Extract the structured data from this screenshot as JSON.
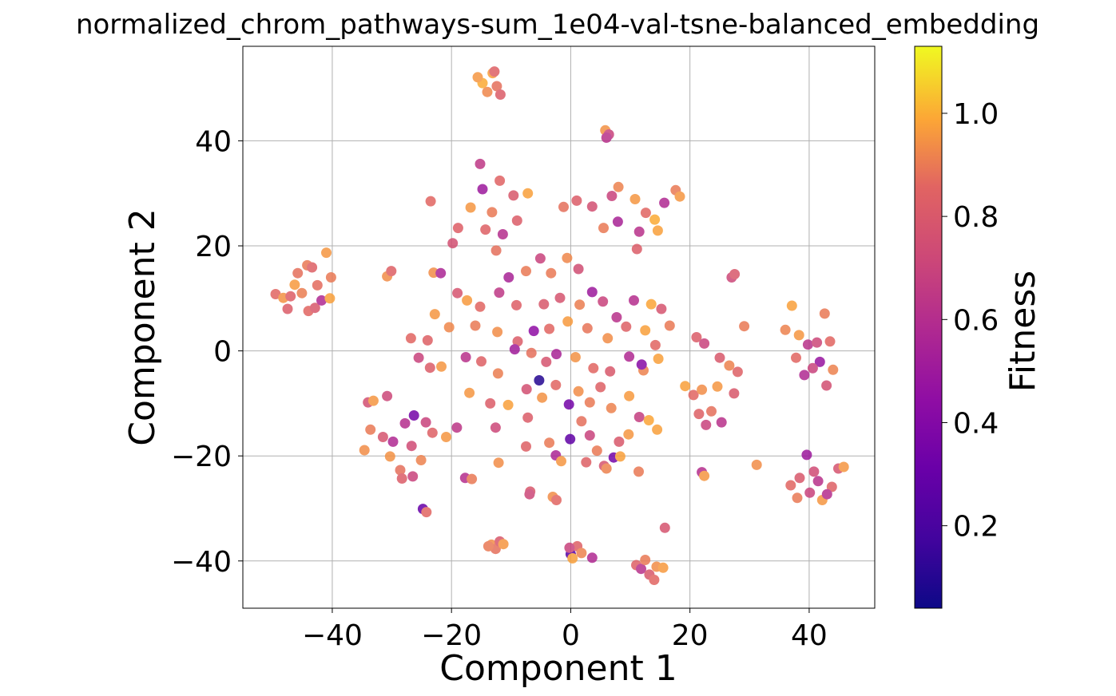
{
  "chart_data": {
    "type": "scatter",
    "title": "normalized_chrom_pathways-sum_1e04-val-tsne-balanced_embedding",
    "xlabel": "Component 1",
    "ylabel": "Component 2",
    "xlim": [
      -55,
      51
    ],
    "ylim": [
      -49,
      58
    ],
    "xticks": [
      -40,
      -20,
      0,
      20,
      40
    ],
    "yticks": [
      -40,
      -20,
      0,
      20,
      40
    ],
    "xtick_labels": [
      "−40",
      "−20",
      "0",
      "20",
      "40"
    ],
    "ytick_labels": [
      "−40",
      "−20",
      "0",
      "20",
      "40"
    ],
    "grid": true,
    "colormap": "plasma",
    "colorbar": {
      "label": "Fitness",
      "range": [
        0.04,
        1.13
      ],
      "ticks": [
        0.2,
        0.4,
        0.6,
        0.8,
        1.0
      ],
      "tick_labels": [
        "0.2",
        "0.4",
        "0.6",
        "0.8",
        "1.0"
      ]
    },
    "points": [
      {
        "x": -49.5,
        "y": 10.8,
        "c": 0.86
      },
      {
        "x": -48.2,
        "y": 10.1,
        "c": 0.95
      },
      {
        "x": -47.5,
        "y": 8.0,
        "c": 0.82
      },
      {
        "x": -46.3,
        "y": 12.6,
        "c": 0.97
      },
      {
        "x": -45.8,
        "y": 14.8,
        "c": 0.88
      },
      {
        "x": -44.2,
        "y": 16.3,
        "c": 0.9
      },
      {
        "x": -43.4,
        "y": 15.9,
        "c": 0.84
      },
      {
        "x": -44.0,
        "y": 7.6,
        "c": 0.86
      },
      {
        "x": -42.9,
        "y": 8.2,
        "c": 0.8
      },
      {
        "x": -41.8,
        "y": 9.6,
        "c": 0.58
      },
      {
        "x": -41.0,
        "y": 18.7,
        "c": 0.96
      },
      {
        "x": -40.2,
        "y": 14.0,
        "c": 0.9
      },
      {
        "x": -40.4,
        "y": 10.0,
        "c": 0.98
      },
      {
        "x": -42.5,
        "y": 12.5,
        "c": 0.87
      },
      {
        "x": -45.1,
        "y": 11.0,
        "c": 0.91
      },
      {
        "x": -47.0,
        "y": 10.4,
        "c": 0.83
      },
      {
        "x": -14.8,
        "y": 51.0,
        "c": 1.0
      },
      {
        "x": -14.0,
        "y": 49.3,
        "c": 0.93
      },
      {
        "x": -13.1,
        "y": 52.9,
        "c": 0.98
      },
      {
        "x": -12.4,
        "y": 50.4,
        "c": 0.88
      },
      {
        "x": -11.8,
        "y": 48.8,
        "c": 0.82
      },
      {
        "x": -15.6,
        "y": 52.1,
        "c": 0.96
      },
      {
        "x": -12.8,
        "y": 53.2,
        "c": 0.84
      },
      {
        "x": 5.8,
        "y": 42.0,
        "c": 0.95
      },
      {
        "x": 6.4,
        "y": 41.2,
        "c": 0.7
      },
      {
        "x": 6.0,
        "y": 40.6,
        "c": 0.62
      },
      {
        "x": -15.2,
        "y": 35.6,
        "c": 0.65
      },
      {
        "x": -14.8,
        "y": 30.8,
        "c": 0.5
      },
      {
        "x": -11.9,
        "y": 32.4,
        "c": 0.85
      },
      {
        "x": -9.6,
        "y": 29.6,
        "c": 0.8
      },
      {
        "x": -16.8,
        "y": 27.3,
        "c": 0.96
      },
      {
        "x": -13.2,
        "y": 26.4,
        "c": 0.9
      },
      {
        "x": -11.4,
        "y": 22.2,
        "c": 0.6
      },
      {
        "x": -14.3,
        "y": 23.1,
        "c": 0.84
      },
      {
        "x": -18.9,
        "y": 23.4,
        "c": 0.83
      },
      {
        "x": -19.8,
        "y": 20.5,
        "c": 0.76
      },
      {
        "x": -23.5,
        "y": 28.5,
        "c": 0.86
      },
      {
        "x": -7.2,
        "y": 30.0,
        "c": 0.98
      },
      {
        "x": -9.0,
        "y": 24.8,
        "c": 0.82
      },
      {
        "x": -12.5,
        "y": 19.1,
        "c": 0.88
      },
      {
        "x": -1.2,
        "y": 27.4,
        "c": 0.88
      },
      {
        "x": 1.0,
        "y": 28.6,
        "c": 0.82
      },
      {
        "x": 3.6,
        "y": 27.5,
        "c": 0.76
      },
      {
        "x": 6.9,
        "y": 29.5,
        "c": 0.7
      },
      {
        "x": 8.0,
        "y": 31.2,
        "c": 0.92
      },
      {
        "x": 10.8,
        "y": 28.9,
        "c": 0.96
      },
      {
        "x": 12.6,
        "y": 26.3,
        "c": 0.86
      },
      {
        "x": 14.1,
        "y": 25.0,
        "c": 1.0
      },
      {
        "x": 11.5,
        "y": 22.7,
        "c": 0.62
      },
      {
        "x": 7.9,
        "y": 24.6,
        "c": 0.55
      },
      {
        "x": 15.7,
        "y": 28.2,
        "c": 0.58
      },
      {
        "x": 17.6,
        "y": 30.6,
        "c": 0.9
      },
      {
        "x": 18.3,
        "y": 29.4,
        "c": 0.96
      },
      {
        "x": 11.1,
        "y": 19.4,
        "c": 0.82
      },
      {
        "x": 14.6,
        "y": 22.9,
        "c": 0.98
      },
      {
        "x": 5.5,
        "y": 23.4,
        "c": 0.9
      },
      {
        "x": -5.1,
        "y": 17.6,
        "c": 0.7
      },
      {
        "x": -0.6,
        "y": 17.7,
        "c": 0.93
      },
      {
        "x": 1.3,
        "y": 15.6,
        "c": 0.75
      },
      {
        "x": -3.3,
        "y": 14.8,
        "c": 0.9
      },
      {
        "x": -10.4,
        "y": 14.0,
        "c": 0.55
      },
      {
        "x": -7.5,
        "y": 15.2,
        "c": 0.9
      },
      {
        "x": -23.0,
        "y": 14.9,
        "c": 0.94
      },
      {
        "x": -21.8,
        "y": 14.8,
        "c": 0.56
      },
      {
        "x": 27.0,
        "y": 14.0,
        "c": 0.72
      },
      {
        "x": 27.5,
        "y": 14.6,
        "c": 0.8
      },
      {
        "x": -30.8,
        "y": 14.2,
        "c": 0.94
      },
      {
        "x": -30.1,
        "y": 15.2,
        "c": 0.84
      },
      {
        "x": -19.0,
        "y": 11.0,
        "c": 0.78
      },
      {
        "x": -17.4,
        "y": 9.6,
        "c": 0.97
      },
      {
        "x": -15.2,
        "y": 8.4,
        "c": 0.86
      },
      {
        "x": -12.0,
        "y": 11.1,
        "c": 0.65
      },
      {
        "x": -9.1,
        "y": 8.7,
        "c": 0.83
      },
      {
        "x": -6.2,
        "y": 3.8,
        "c": 0.45
      },
      {
        "x": -4.5,
        "y": 8.9,
        "c": 0.8
      },
      {
        "x": -1.8,
        "y": 10.1,
        "c": 0.78
      },
      {
        "x": 1.5,
        "y": 8.8,
        "c": 0.91
      },
      {
        "x": 3.6,
        "y": 11.2,
        "c": 0.5
      },
      {
        "x": 5.4,
        "y": 9.4,
        "c": 0.7
      },
      {
        "x": 10.6,
        "y": 9.6,
        "c": 0.6
      },
      {
        "x": 13.5,
        "y": 8.9,
        "c": 0.99
      },
      {
        "x": 15.2,
        "y": 8.0,
        "c": 0.78
      },
      {
        "x": 16.6,
        "y": 4.8,
        "c": 0.9
      },
      {
        "x": 7.7,
        "y": 6.4,
        "c": 0.62
      },
      {
        "x": -22.8,
        "y": 7.0,
        "c": 0.96
      },
      {
        "x": -24.0,
        "y": 2.0,
        "c": 0.84
      },
      {
        "x": -20.4,
        "y": 4.5,
        "c": 0.93
      },
      {
        "x": -16.0,
        "y": 4.8,
        "c": 0.9
      },
      {
        "x": -12.3,
        "y": 3.6,
        "c": 0.94
      },
      {
        "x": -8.9,
        "y": 1.8,
        "c": 0.82
      },
      {
        "x": -3.6,
        "y": 4.2,
        "c": 0.86
      },
      {
        "x": -0.5,
        "y": 5.6,
        "c": 0.97
      },
      {
        "x": 2.8,
        "y": 4.3,
        "c": 0.89
      },
      {
        "x": 6.2,
        "y": 2.4,
        "c": 0.94
      },
      {
        "x": 9.3,
        "y": 4.6,
        "c": 0.84
      },
      {
        "x": 12.5,
        "y": 3.9,
        "c": 0.98
      },
      {
        "x": 14.2,
        "y": 1.1,
        "c": 0.86
      },
      {
        "x": -26.8,
        "y": 2.4,
        "c": 0.86
      },
      {
        "x": -25.5,
        "y": -1.3,
        "c": 0.7
      },
      {
        "x": -23.6,
        "y": -3.2,
        "c": 0.82
      },
      {
        "x": -21.7,
        "y": -3.0,
        "c": 0.96
      },
      {
        "x": -17.6,
        "y": -1.2,
        "c": 0.62
      },
      {
        "x": -15.0,
        "y": -2.0,
        "c": 0.84
      },
      {
        "x": -12.2,
        "y": -4.3,
        "c": 0.91
      },
      {
        "x": -9.4,
        "y": 0.3,
        "c": 0.52
      },
      {
        "x": -6.6,
        "y": -0.4,
        "c": 0.88
      },
      {
        "x": -4.1,
        "y": -2.1,
        "c": 0.78
      },
      {
        "x": -5.3,
        "y": -5.6,
        "c": 0.1
      },
      {
        "x": -2.4,
        "y": -0.6,
        "c": 0.55
      },
      {
        "x": 0.8,
        "y": -1.2,
        "c": 0.95
      },
      {
        "x": 3.8,
        "y": -3.3,
        "c": 0.86
      },
      {
        "x": 6.6,
        "y": -3.9,
        "c": 0.8
      },
      {
        "x": 9.8,
        "y": -1.1,
        "c": 0.58
      },
      {
        "x": 12.2,
        "y": -3.7,
        "c": 0.92
      },
      {
        "x": 14.7,
        "y": -1.5,
        "c": 0.98
      },
      {
        "x": 11.9,
        "y": -2.6,
        "c": 0.42
      },
      {
        "x": -17.0,
        "y": -8.0,
        "c": 0.96
      },
      {
        "x": -13.5,
        "y": -10.0,
        "c": 0.82
      },
      {
        "x": -10.5,
        "y": -10.3,
        "c": 0.98
      },
      {
        "x": -7.4,
        "y": -7.3,
        "c": 0.76
      },
      {
        "x": -4.8,
        "y": -8.9,
        "c": 0.95
      },
      {
        "x": -2.5,
        "y": -6.5,
        "c": 0.86
      },
      {
        "x": -0.3,
        "y": -10.2,
        "c": 0.35
      },
      {
        "x": 1.3,
        "y": -7.7,
        "c": 0.94
      },
      {
        "x": 3.2,
        "y": -9.8,
        "c": 0.9
      },
      {
        "x": 5.0,
        "y": -6.9,
        "c": 0.84
      },
      {
        "x": 6.8,
        "y": -10.9,
        "c": 0.92
      },
      {
        "x": 9.8,
        "y": -8.6,
        "c": 0.97
      },
      {
        "x": 11.5,
        "y": -12.6,
        "c": 0.68
      },
      {
        "x": 13.1,
        "y": -13.2,
        "c": 0.99
      },
      {
        "x": 14.5,
        "y": -15.0,
        "c": 0.98
      },
      {
        "x": -34.0,
        "y": -9.8,
        "c": 0.76
      },
      {
        "x": -33.1,
        "y": -9.5,
        "c": 0.96
      },
      {
        "x": -30.8,
        "y": -8.6,
        "c": 0.72
      },
      {
        "x": -33.6,
        "y": -15.0,
        "c": 0.9
      },
      {
        "x": -31.5,
        "y": -16.4,
        "c": 0.78
      },
      {
        "x": -29.8,
        "y": -17.3,
        "c": 0.58
      },
      {
        "x": -27.8,
        "y": -13.8,
        "c": 0.6
      },
      {
        "x": -26.3,
        "y": -12.3,
        "c": 0.35
      },
      {
        "x": -24.3,
        "y": -13.6,
        "c": 0.7
      },
      {
        "x": -23.2,
        "y": -15.6,
        "c": 0.84
      },
      {
        "x": -20.9,
        "y": -16.4,
        "c": 0.96
      },
      {
        "x": -19.1,
        "y": -14.6,
        "c": 0.64
      },
      {
        "x": -30.3,
        "y": -20.1,
        "c": 0.95
      },
      {
        "x": -28.6,
        "y": -22.7,
        "c": 0.88
      },
      {
        "x": -26.7,
        "y": -18.1,
        "c": 0.74
      },
      {
        "x": -25.1,
        "y": -20.8,
        "c": 0.92
      },
      {
        "x": -28.3,
        "y": -24.3,
        "c": 0.82
      },
      {
        "x": -26.5,
        "y": -23.9,
        "c": 0.7
      },
      {
        "x": -34.6,
        "y": -18.9,
        "c": 0.94
      },
      {
        "x": -24.8,
        "y": -30.1,
        "c": 0.3
      },
      {
        "x": -24.2,
        "y": -30.7,
        "c": 0.86
      },
      {
        "x": -17.7,
        "y": -24.2,
        "c": 0.6
      },
      {
        "x": -16.6,
        "y": -24.4,
        "c": 0.9
      },
      {
        "x": -12.1,
        "y": -21.3,
        "c": 0.94
      },
      {
        "x": -12.6,
        "y": -14.6,
        "c": 0.72
      },
      {
        "x": -7.2,
        "y": -12.7,
        "c": 0.82
      },
      {
        "x": -7.5,
        "y": -18.2,
        "c": 0.84
      },
      {
        "x": -3.6,
        "y": -17.5,
        "c": 0.9
      },
      {
        "x": -2.5,
        "y": -19.9,
        "c": 0.56
      },
      {
        "x": -1.6,
        "y": -21.0,
        "c": 0.96
      },
      {
        "x": -0.1,
        "y": -16.8,
        "c": 0.28
      },
      {
        "x": 1.8,
        "y": -13.4,
        "c": 0.88
      },
      {
        "x": 3.2,
        "y": -16.1,
        "c": 0.7
      },
      {
        "x": 4.4,
        "y": -19.0,
        "c": 0.9
      },
      {
        "x": 5.6,
        "y": -21.9,
        "c": 0.78
      },
      {
        "x": 7.2,
        "y": -20.3,
        "c": 0.35
      },
      {
        "x": 8.1,
        "y": -17.3,
        "c": 0.8
      },
      {
        "x": 9.7,
        "y": -15.9,
        "c": 0.96
      },
      {
        "x": 11.4,
        "y": -23.0,
        "c": 0.9
      },
      {
        "x": 2.6,
        "y": -21.2,
        "c": 0.84
      },
      {
        "x": 6.0,
        "y": -22.4,
        "c": 0.92
      },
      {
        "x": 8.3,
        "y": -20.1,
        "c": 0.98
      },
      {
        "x": -6.8,
        "y": -26.8,
        "c": 0.8
      },
      {
        "x": -6.9,
        "y": -27.3,
        "c": 0.72
      },
      {
        "x": -3.0,
        "y": -27.8,
        "c": 0.94
      },
      {
        "x": -2.4,
        "y": -28.4,
        "c": 0.86
      },
      {
        "x": 21.1,
        "y": 2.6,
        "c": 0.82
      },
      {
        "x": 22.4,
        "y": 1.4,
        "c": 0.7
      },
      {
        "x": 25.0,
        "y": -1.3,
        "c": 0.8
      },
      {
        "x": 26.6,
        "y": -2.8,
        "c": 0.92
      },
      {
        "x": 28.0,
        "y": -4.0,
        "c": 0.84
      },
      {
        "x": 29.1,
        "y": 4.7,
        "c": 0.9
      },
      {
        "x": 19.2,
        "y": -6.7,
        "c": 0.98
      },
      {
        "x": 20.6,
        "y": -8.4,
        "c": 0.86
      },
      {
        "x": 22.0,
        "y": -7.4,
        "c": 0.94
      },
      {
        "x": 24.6,
        "y": -6.8,
        "c": 0.96
      },
      {
        "x": 27.4,
        "y": -8.1,
        "c": 0.8
      },
      {
        "x": 21.5,
        "y": -12.0,
        "c": 0.84
      },
      {
        "x": 22.7,
        "y": -14.1,
        "c": 0.7
      },
      {
        "x": 25.3,
        "y": -13.6,
        "c": 0.62
      },
      {
        "x": 23.6,
        "y": -11.5,
        "c": 0.88
      },
      {
        "x": 22.0,
        "y": -23.1,
        "c": 0.6
      },
      {
        "x": 22.4,
        "y": -23.8,
        "c": 0.96
      },
      {
        "x": 31.2,
        "y": -21.7,
        "c": 0.94
      },
      {
        "x": 36.0,
        "y": 4.0,
        "c": 0.92
      },
      {
        "x": 37.1,
        "y": 8.6,
        "c": 0.98
      },
      {
        "x": 38.3,
        "y": 3.0,
        "c": 0.96
      },
      {
        "x": 39.8,
        "y": 1.2,
        "c": 0.62
      },
      {
        "x": 41.3,
        "y": 1.6,
        "c": 0.72
      },
      {
        "x": 42.6,
        "y": 7.1,
        "c": 0.9
      },
      {
        "x": 43.5,
        "y": 1.8,
        "c": 0.86
      },
      {
        "x": 39.2,
        "y": -4.6,
        "c": 0.58
      },
      {
        "x": 41.8,
        "y": -2.1,
        "c": 0.48
      },
      {
        "x": 42.9,
        "y": -6.6,
        "c": 0.76
      },
      {
        "x": 44.0,
        "y": -3.6,
        "c": 0.92
      },
      {
        "x": 37.8,
        "y": -1.3,
        "c": 0.86
      },
      {
        "x": 40.6,
        "y": -3.3,
        "c": 0.7
      },
      {
        "x": 39.6,
        "y": -19.8,
        "c": 0.5
      },
      {
        "x": 36.9,
        "y": -25.6,
        "c": 0.86
      },
      {
        "x": 38.4,
        "y": -24.2,
        "c": 0.8
      },
      {
        "x": 40.1,
        "y": -27.0,
        "c": 0.7
      },
      {
        "x": 41.5,
        "y": -24.8,
        "c": 0.62
      },
      {
        "x": 42.2,
        "y": -28.4,
        "c": 0.96
      },
      {
        "x": 43.8,
        "y": -25.9,
        "c": 0.84
      },
      {
        "x": 44.9,
        "y": -22.4,
        "c": 0.78
      },
      {
        "x": 45.8,
        "y": -22.1,
        "c": 0.96
      },
      {
        "x": 38.0,
        "y": -28.0,
        "c": 0.9
      },
      {
        "x": 40.8,
        "y": -23.0,
        "c": 0.74
      },
      {
        "x": 43.0,
        "y": -27.3,
        "c": 0.6
      },
      {
        "x": -13.3,
        "y": -36.9,
        "c": 0.94
      },
      {
        "x": -12.6,
        "y": -37.7,
        "c": 0.88
      },
      {
        "x": -11.9,
        "y": -36.3,
        "c": 0.8
      },
      {
        "x": -11.3,
        "y": -36.8,
        "c": 0.96
      },
      {
        "x": -13.8,
        "y": -37.2,
        "c": 0.9
      },
      {
        "x": 0.0,
        "y": -38.7,
        "c": 0.25
      },
      {
        "x": 0.3,
        "y": -39.5,
        "c": 0.98
      },
      {
        "x": 1.1,
        "y": -37.2,
        "c": 0.84
      },
      {
        "x": 1.8,
        "y": -38.5,
        "c": 0.92
      },
      {
        "x": -0.2,
        "y": -37.5,
        "c": 0.7
      },
      {
        "x": 3.6,
        "y": -39.4,
        "c": 0.58
      },
      {
        "x": 11.0,
        "y": -40.8,
        "c": 0.84
      },
      {
        "x": 11.8,
        "y": -41.5,
        "c": 0.62
      },
      {
        "x": 12.5,
        "y": -39.8,
        "c": 0.9
      },
      {
        "x": 13.2,
        "y": -42.6,
        "c": 0.8
      },
      {
        "x": 14.4,
        "y": -41.1,
        "c": 0.94
      },
      {
        "x": 15.5,
        "y": -41.3,
        "c": 0.97
      },
      {
        "x": 14.0,
        "y": -43.6,
        "c": 0.86
      },
      {
        "x": 15.8,
        "y": -33.7,
        "c": 0.78
      }
    ]
  }
}
